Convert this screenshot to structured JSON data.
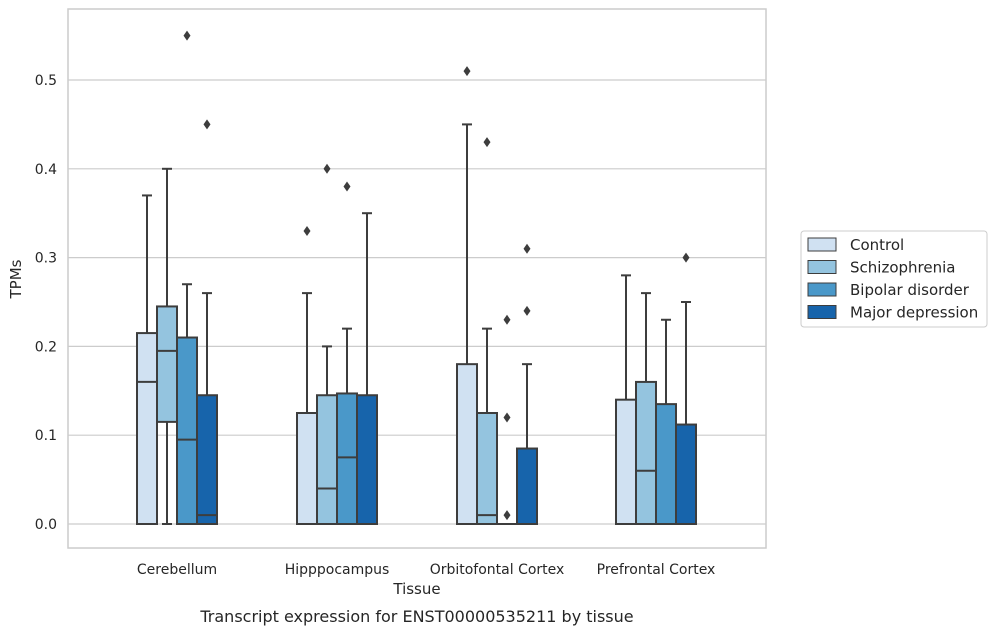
{
  "chart_data": {
    "type": "box",
    "xlabel": "Tissue",
    "ylabel": "TPMs",
    "caption": "Transcript expression for ENST00000535211 by tissue",
    "ylim": [
      -0.027,
      0.58
    ],
    "yticks": [
      "0.0",
      "0.1",
      "0.2",
      "0.3",
      "0.4",
      "0.5"
    ],
    "categories": [
      "Cerebellum",
      "Hipppocampus",
      "Orbitofontal Cortex",
      "Prefrontal Cortex"
    ],
    "grid": "horizontal",
    "legend_position": "right",
    "series": [
      {
        "name": "Control",
        "color": "#d0e1f2",
        "boxes": [
          {
            "whislo": 0.0,
            "q1": 0.0,
            "med": 0.16,
            "q3": 0.215,
            "whishi": 0.37,
            "fliers": []
          },
          {
            "whislo": 0.0,
            "q1": 0.0,
            "med": 0.0,
            "q3": 0.125,
            "whishi": 0.26,
            "fliers": [
              0.33
            ]
          },
          {
            "whislo": 0.0,
            "q1": 0.0,
            "med": 0.0,
            "q3": 0.18,
            "whishi": 0.45,
            "fliers": [
              0.51
            ]
          },
          {
            "whislo": 0.0,
            "q1": 0.0,
            "med": 0.0,
            "q3": 0.14,
            "whishi": 0.28,
            "fliers": []
          }
        ]
      },
      {
        "name": "Schizophrenia",
        "color": "#94c4df",
        "boxes": [
          {
            "whislo": 0.0,
            "q1": 0.115,
            "med": 0.195,
            "q3": 0.245,
            "whishi": 0.4,
            "fliers": []
          },
          {
            "whislo": 0.0,
            "q1": 0.0,
            "med": 0.04,
            "q3": 0.145,
            "whishi": 0.2,
            "fliers": [
              0.4
            ]
          },
          {
            "whislo": 0.0,
            "q1": 0.0,
            "med": 0.01,
            "q3": 0.125,
            "whishi": 0.22,
            "fliers": [
              0.43
            ]
          },
          {
            "whislo": 0.0,
            "q1": 0.0,
            "med": 0.06,
            "q3": 0.16,
            "whishi": 0.26,
            "fliers": []
          }
        ]
      },
      {
        "name": "Bipolar disorder",
        "color": "#4a98c9",
        "boxes": [
          {
            "whislo": 0.0,
            "q1": 0.0,
            "med": 0.095,
            "q3": 0.21,
            "whishi": 0.27,
            "fliers": [
              0.55
            ]
          },
          {
            "whislo": 0.0,
            "q1": 0.0,
            "med": 0.075,
            "q3": 0.147,
            "whishi": 0.22,
            "fliers": [
              0.38
            ]
          },
          {
            "whislo": 0.0,
            "q1": 0.0,
            "med": 0.0,
            "q3": 0.0,
            "whishi": 0.0,
            "fliers": [
              0.23,
              0.12,
              0.01
            ]
          },
          {
            "whislo": 0.0,
            "q1": 0.0,
            "med": 0.0,
            "q3": 0.135,
            "whishi": 0.23,
            "fliers": []
          }
        ]
      },
      {
        "name": "Major depression",
        "color": "#1764ab",
        "boxes": [
          {
            "whislo": 0.0,
            "q1": 0.0,
            "med": 0.01,
            "q3": 0.145,
            "whishi": 0.26,
            "fliers": [
              0.45
            ]
          },
          {
            "whislo": 0.0,
            "q1": 0.0,
            "med": 0.0,
            "q3": 0.145,
            "whishi": 0.35,
            "fliers": []
          },
          {
            "whislo": 0.0,
            "q1": 0.0,
            "med": 0.0,
            "q3": 0.085,
            "whishi": 0.18,
            "fliers": [
              0.31,
              0.24
            ]
          },
          {
            "whislo": 0.0,
            "q1": 0.0,
            "med": 0.0,
            "q3": 0.112,
            "whishi": 0.25,
            "fliers": [
              0.3
            ]
          }
        ]
      }
    ]
  }
}
